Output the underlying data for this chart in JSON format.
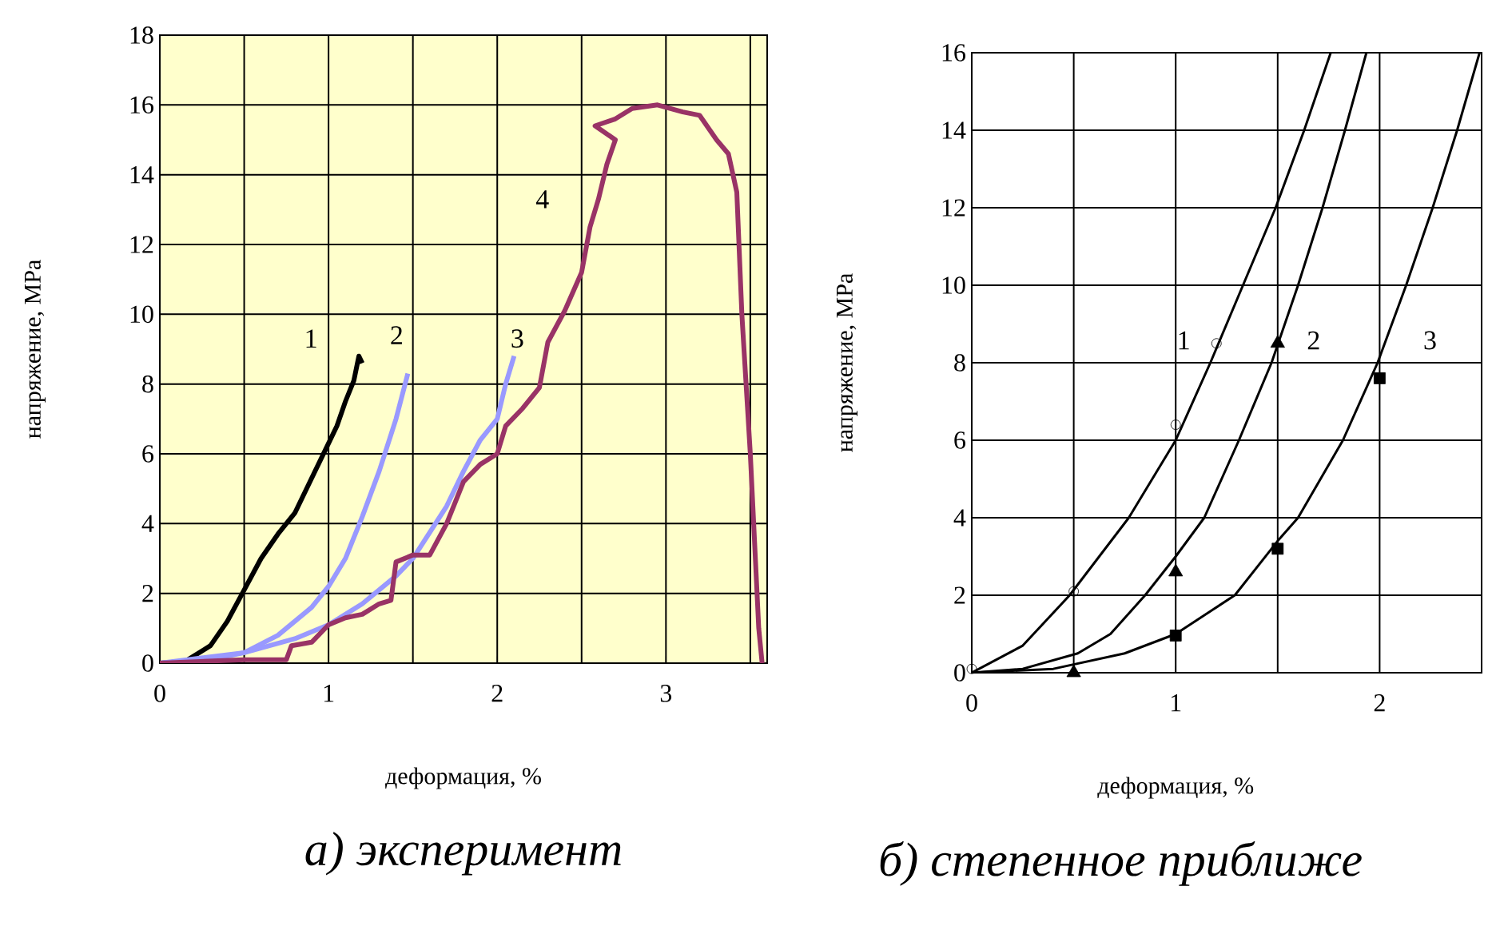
{
  "chart_data": [
    {
      "type": "line",
      "title": "*а) эксперимент*",
      "xlabel": "деформация, %",
      "ylabel": "напряжение, MPa",
      "xlim": [
        0,
        3.6
      ],
      "ylim": [
        0,
        18
      ],
      "xticks": [
        0,
        {
          "value": 0.5,
          "label": null
        },
        1,
        {
          "value": 1.5,
          "label": null
        },
        2,
        {
          "value": 2.5,
          "label": null
        },
        3,
        {
          "value": 3.5,
          "label": null
        }
      ],
      "yticks": [
        0,
        2,
        4,
        6,
        8,
        10,
        12,
        14,
        16,
        18
      ],
      "grid": true,
      "series": [
        {
          "name": "1",
          "color": "#000000",
          "x": [
            0,
            0.15,
            0.3,
            0.4,
            0.5,
            0.6,
            0.7,
            0.8,
            0.9,
            1.0,
            1.05,
            1.1,
            1.15,
            1.18,
            1.2
          ],
          "values": [
            0,
            0.05,
            0.5,
            1.2,
            2.1,
            3.0,
            3.7,
            4.3,
            5.3,
            6.3,
            6.8,
            7.5,
            8.1,
            8.8,
            8.6
          ]
        },
        {
          "name": "2",
          "color": "#9999ff",
          "x": [
            0,
            0.3,
            0.5,
            0.7,
            0.9,
            1.0,
            1.1,
            1.2,
            1.3,
            1.4,
            1.47
          ],
          "values": [
            0,
            0.1,
            0.3,
            0.8,
            1.6,
            2.2,
            3.0,
            4.2,
            5.5,
            7.0,
            8.3
          ]
        },
        {
          "name": "3",
          "color": "#9999ff",
          "x": [
            0,
            0.5,
            0.8,
            1.0,
            1.2,
            1.4,
            1.5,
            1.7,
            1.8,
            1.9,
            2.0,
            2.05,
            2.1
          ],
          "values": [
            0,
            0.3,
            0.7,
            1.1,
            1.7,
            2.5,
            3.0,
            4.5,
            5.5,
            6.4,
            7.0,
            8.0,
            8.8
          ]
        },
        {
          "name": "4",
          "color": "#993366",
          "x": [
            0,
            0.5,
            0.75,
            0.78,
            0.9,
            1.0,
            1.1,
            1.2,
            1.3,
            1.37,
            1.4,
            1.5,
            1.6,
            1.7,
            1.8,
            1.9,
            2.0,
            2.05,
            2.15,
            2.25,
            2.3,
            2.4,
            2.5,
            2.55,
            2.6,
            2.65,
            2.7,
            2.58,
            2.7,
            2.8,
            2.95,
            3.1,
            3.2,
            3.3,
            3.37,
            3.42,
            3.45,
            3.5,
            3.55,
            3.57
          ],
          "values": [
            0,
            0.1,
            0.1,
            0.5,
            0.6,
            1.1,
            1.3,
            1.4,
            1.7,
            1.8,
            2.9,
            3.1,
            3.1,
            4.0,
            5.2,
            5.7,
            6.0,
            6.8,
            7.3,
            7.9,
            9.2,
            10.1,
            11.2,
            12.5,
            13.3,
            14.3,
            15.0,
            15.4,
            15.6,
            15.9,
            16.0,
            15.8,
            15.7,
            15.0,
            14.6,
            13.5,
            10,
            6,
            1,
            0
          ]
        }
      ]
    },
    {
      "type": "line",
      "title": "*б) степенное приближе*",
      "xlabel": "деформация, %",
      "ylabel": "напряжение, MPa",
      "xlim": [
        0,
        2.5
      ],
      "ylim": [
        0,
        16
      ],
      "xticks": [
        0,
        {
          "value": 0.5,
          "label": null
        },
        1,
        {
          "value": 1.5,
          "label": null
        },
        2,
        {
          "value": 2.5,
          "label": null
        }
      ],
      "yticks": [
        0,
        2,
        4,
        6,
        8,
        10,
        12,
        14,
        16
      ],
      "grid": true,
      "series": [
        {
          "name": "1",
          "color": "#000000",
          "x": [
            0,
            0.25,
            0.48,
            0.77,
            1.0,
            1.17,
            1.33,
            1.49,
            1.63,
            1.76
          ],
          "values": [
            0,
            0.7,
            2,
            4,
            6,
            8,
            10,
            12,
            14,
            16
          ]
        },
        {
          "name": "2",
          "color": "#000000",
          "x": [
            0,
            0.25,
            0.52,
            0.68,
            0.85,
            1.0,
            1.14,
            1.31,
            1.47,
            1.6,
            1.72,
            1.83,
            1.935
          ],
          "values": [
            0,
            0.1,
            0.5,
            1,
            2,
            3,
            4,
            6,
            8,
            10,
            12,
            14,
            16
          ]
        },
        {
          "name": "3",
          "color": "#000000",
          "x": [
            0,
            0.4,
            0.75,
            1.0,
            1.29,
            1.5,
            1.6,
            1.82,
            1.99,
            2.13,
            2.26,
            2.38,
            2.49
          ],
          "values": [
            0,
            0.1,
            0.5,
            1,
            2,
            3.4,
            4,
            6,
            8,
            10,
            12,
            14,
            16
          ]
        },
        {
          "type": "scatter",
          "marker": "circle",
          "color": "#000000",
          "x": [
            0,
            0.5,
            1,
            1.2
          ],
          "values": [
            0.1,
            2.1,
            6.4,
            8.5
          ]
        },
        {
          "type": "scatter",
          "marker": "triangle",
          "color": "#000000",
          "x": [
            0.5,
            1,
            1.5
          ],
          "values": [
            0,
            2.6,
            8.5
          ]
        },
        {
          "type": "scatter",
          "marker": "square",
          "color": "#000000",
          "x": [
            1,
            1.5,
            2
          ],
          "values": [
            0.96,
            3.2,
            7.6
          ]
        }
      ]
    }
  ]
}
